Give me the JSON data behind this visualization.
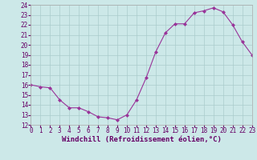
{
  "x": [
    0,
    1,
    2,
    3,
    4,
    5,
    6,
    7,
    8,
    9,
    10,
    11,
    12,
    13,
    14,
    15,
    16,
    17,
    18,
    19,
    20,
    21,
    22,
    23
  ],
  "y": [
    16.0,
    15.8,
    15.7,
    14.5,
    13.7,
    13.7,
    13.3,
    12.8,
    12.7,
    12.5,
    13.0,
    14.5,
    16.7,
    19.3,
    21.2,
    22.1,
    22.1,
    23.2,
    23.4,
    23.7,
    23.3,
    22.0,
    20.3,
    19.0
  ],
  "xlabel": "Windchill (Refroidissement éolien,°C)",
  "xlim": [
    0,
    23
  ],
  "ylim": [
    12,
    24
  ],
  "yticks": [
    12,
    13,
    14,
    15,
    16,
    17,
    18,
    19,
    20,
    21,
    22,
    23,
    24
  ],
  "xticks": [
    0,
    1,
    2,
    3,
    4,
    5,
    6,
    7,
    8,
    9,
    10,
    11,
    12,
    13,
    14,
    15,
    16,
    17,
    18,
    19,
    20,
    21,
    22,
    23
  ],
  "line_color": "#993399",
  "marker": "D",
  "marker_size": 2.0,
  "bg_color": "#cce8e8",
  "grid_color": "#aacccc",
  "xlabel_fontsize": 6.5,
  "tick_fontsize": 5.5
}
